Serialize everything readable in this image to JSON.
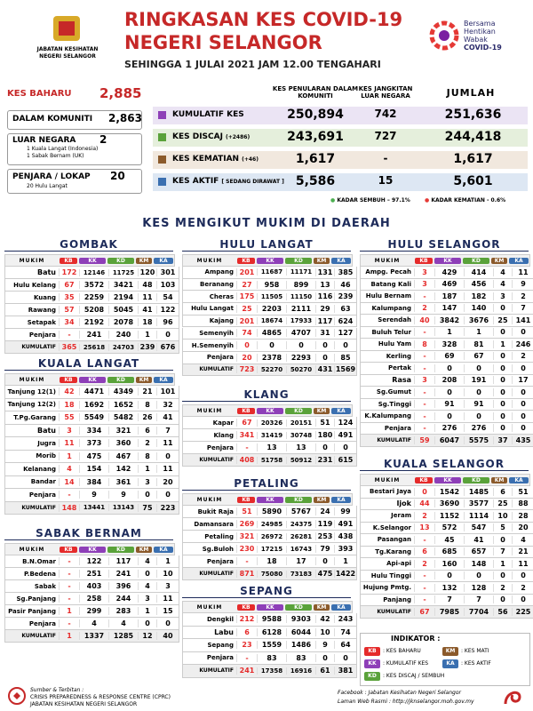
{
  "header": {
    "agency": [
      "JABATAN KESIHATAN",
      "NEGERI SELANGOR"
    ],
    "title": "RINGKASAN KES COVID-19",
    "subtitle": "NEGERI SELANGOR",
    "date": "SEHINGGA 1 JULAI 2021 JAM 12.00 TENGAHARI",
    "campaign": [
      "Bersama",
      "Hentikan",
      "Wabak",
      "COVID-19"
    ]
  },
  "new_cases": {
    "label": "KES BAHARU",
    "value": "2,885",
    "items": [
      {
        "label": "DALAM KOMUNITI",
        "value": "2,863"
      },
      {
        "label": "LUAR NEGARA",
        "value": "2",
        "notes": [
          "1 Kuala Langat (Indonesia)",
          "1 Sabak Bernam (UK)"
        ]
      },
      {
        "label": "PENJARA / LOKAP",
        "value": "20",
        "notes": [
          "20 Hulu Langat"
        ]
      }
    ]
  },
  "summary": {
    "columns": [
      "KES PENULARAN DALAM KOMUNITI",
      "KES JANGKITAN LUAR NEGARA",
      "JUMLAH"
    ],
    "rows": [
      {
        "label": "KUMULATIF KES",
        "values": [
          "250,894",
          "742",
          "251,636"
        ]
      },
      {
        "label": "KES DISCAJ",
        "note": "(+2486)",
        "values": [
          "243,691",
          "727",
          "244,418"
        ]
      },
      {
        "label": "KES KEMATIAN",
        "note": "(+46)",
        "values": [
          "1,617",
          "-",
          "1,617"
        ]
      },
      {
        "label": "KES AKTIF",
        "note": "[ SEDANG DIRAWAT ]",
        "values": [
          "5,586",
          "15",
          "5,601"
        ]
      }
    ],
    "rates": [
      "KADAR SEMBUH – 97.1%",
      "KADAR KEMATIAN - 0.6%"
    ]
  },
  "districts": {
    "title": "KES MENGIKUT MUKIM DI DAERAH",
    "columns": [
      "MUKIM",
      "KB",
      "KK",
      "KD",
      "KM",
      "KA"
    ],
    "list": [
      {
        "name": "GOMBAK",
        "rows": [
          [
            "Batu",
            "172",
            "12146",
            "11725",
            "120",
            "301"
          ],
          [
            "Hulu Kelang",
            "67",
            "3572",
            "3421",
            "48",
            "103"
          ],
          [
            "Kuang",
            "35",
            "2259",
            "2194",
            "11",
            "54"
          ],
          [
            "Rawang",
            "57",
            "5208",
            "5045",
            "41",
            "122"
          ],
          [
            "Setapak",
            "34",
            "2192",
            "2078",
            "18",
            "96"
          ],
          [
            "Penjara",
            "-",
            "241",
            "240",
            "1",
            "0"
          ],
          [
            "KUMULATIF",
            "365",
            "25618",
            "24703",
            "239",
            "676"
          ]
        ]
      },
      {
        "name": "HULU LANGAT",
        "rows": [
          [
            "Ampang",
            "201",
            "11687",
            "11171",
            "131",
            "385"
          ],
          [
            "Beranang",
            "27",
            "958",
            "899",
            "13",
            "46"
          ],
          [
            "Cheras",
            "175",
            "11505",
            "11150",
            "116",
            "239"
          ],
          [
            "Hulu Langat",
            "25",
            "2203",
            "2111",
            "29",
            "63"
          ],
          [
            "Kajang",
            "201",
            "18674",
            "17933",
            "117",
            "624"
          ],
          [
            "Semenyih",
            "74",
            "4865",
            "4707",
            "31",
            "127"
          ],
          [
            "H.Semenyih",
            "0",
            "0",
            "0",
            "0",
            "0"
          ],
          [
            "Penjara",
            "20",
            "2378",
            "2293",
            "0",
            "85"
          ],
          [
            "KUMULATIF",
            "723",
            "52270",
            "50270",
            "431",
            "1569"
          ]
        ]
      },
      {
        "name": "HULU SELANGOR",
        "rows": [
          [
            "Ampg. Pecah",
            "3",
            "429",
            "414",
            "4",
            "11"
          ],
          [
            "Batang Kali",
            "3",
            "469",
            "456",
            "4",
            "9"
          ],
          [
            "Hulu Bernam",
            "-",
            "187",
            "182",
            "3",
            "2"
          ],
          [
            "Kalumpang",
            "2",
            "147",
            "140",
            "0",
            "7"
          ],
          [
            "Serendah",
            "40",
            "3842",
            "3676",
            "25",
            "141"
          ],
          [
            "Buluh Telur",
            "-",
            "1",
            "1",
            "0",
            "0"
          ],
          [
            "Hulu Yam",
            "8",
            "328",
            "81",
            "1",
            "246"
          ],
          [
            "Kerling",
            "-",
            "69",
            "67",
            "0",
            "2"
          ],
          [
            "Pertak",
            "-",
            "0",
            "0",
            "0",
            "0"
          ],
          [
            "Rasa",
            "3",
            "208",
            "191",
            "0",
            "17"
          ],
          [
            "Sg.Gumut",
            "-",
            "0",
            "0",
            "0",
            "0"
          ],
          [
            "Sg.Tinggi",
            "-",
            "91",
            "91",
            "0",
            "0"
          ],
          [
            "K.Kalumpang",
            "-",
            "0",
            "0",
            "0",
            "0"
          ],
          [
            "Penjara",
            "-",
            "276",
            "276",
            "0",
            "0"
          ],
          [
            "KUMULATIF",
            "59",
            "6047",
            "5575",
            "37",
            "435"
          ]
        ]
      },
      {
        "name": "KUALA LANGAT",
        "rows": [
          [
            "Tanjung 12(1)",
            "42",
            "4471",
            "4349",
            "21",
            "101"
          ],
          [
            "Tanjung 12(2)",
            "18",
            "1692",
            "1652",
            "8",
            "32"
          ],
          [
            "T.Pg.Garang",
            "55",
            "5549",
            "5482",
            "26",
            "41"
          ],
          [
            "Batu",
            "3",
            "334",
            "321",
            "6",
            "7"
          ],
          [
            "Jugra",
            "11",
            "373",
            "360",
            "2",
            "11"
          ],
          [
            "Morib",
            "1",
            "475",
            "467",
            "8",
            "0"
          ],
          [
            "Kelanang",
            "4",
            "154",
            "142",
            "1",
            "11"
          ],
          [
            "Bandar",
            "14",
            "384",
            "361",
            "3",
            "20"
          ],
          [
            "Penjara",
            "-",
            "9",
            "9",
            "0",
            "0"
          ],
          [
            "KUMULATIF",
            "148",
            "13441",
            "13143",
            "75",
            "223"
          ]
        ]
      },
      {
        "name": "KLANG",
        "rows": [
          [
            "Kapar",
            "67",
            "20326",
            "20151",
            "51",
            "124"
          ],
          [
            "Klang",
            "341",
            "31419",
            "30748",
            "180",
            "491"
          ],
          [
            "Penjara",
            "-",
            "13",
            "13",
            "0",
            "0"
          ],
          [
            "KUMULATIF",
            "408",
            "51758",
            "50912",
            "231",
            "615"
          ]
        ]
      },
      {
        "name": "KUALA SELANGOR",
        "rows": [
          [
            "Bestari Jaya",
            "0",
            "1542",
            "1485",
            "6",
            "51"
          ],
          [
            "Ijok",
            "44",
            "3690",
            "3577",
            "25",
            "88"
          ],
          [
            "Jeram",
            "2",
            "1152",
            "1114",
            "10",
            "28"
          ],
          [
            "K.Selangor",
            "13",
            "572",
            "547",
            "5",
            "20"
          ],
          [
            "Pasangan",
            "-",
            "45",
            "41",
            "0",
            "4"
          ],
          [
            "Tg.Karang",
            "6",
            "685",
            "657",
            "7",
            "21"
          ],
          [
            "Api-api",
            "2",
            "160",
            "148",
            "1",
            "11"
          ],
          [
            "Hulu Tinggi",
            "-",
            "0",
            "0",
            "0",
            "0"
          ],
          [
            "Hujung Pmtg.",
            "-",
            "132",
            "128",
            "2",
            "2"
          ],
          [
            "Panjang",
            "-",
            "7",
            "7",
            "0",
            "0"
          ],
          [
            "KUMULATIF",
            "67",
            "7985",
            "7704",
            "56",
            "225"
          ]
        ]
      },
      {
        "name": "SABAK BERNAM",
        "rows": [
          [
            "B.N.Omar",
            "-",
            "122",
            "117",
            "4",
            "1"
          ],
          [
            "P.Bedena",
            "-",
            "251",
            "241",
            "0",
            "10"
          ],
          [
            "Sabak",
            "-",
            "403",
            "396",
            "4",
            "3"
          ],
          [
            "Sg.Panjang",
            "-",
            "258",
            "244",
            "3",
            "11"
          ],
          [
            "Pasir Panjang",
            "1",
            "299",
            "283",
            "1",
            "15"
          ],
          [
            "Penjara",
            "-",
            "4",
            "4",
            "0",
            "0"
          ],
          [
            "KUMULATIF",
            "1",
            "1337",
            "1285",
            "12",
            "40"
          ]
        ]
      },
      {
        "name": "PETALING",
        "rows": [
          [
            "Bukit Raja",
            "51",
            "5890",
            "5767",
            "24",
            "99"
          ],
          [
            "Damansara",
            "269",
            "24985",
            "24375",
            "119",
            "491"
          ],
          [
            "Petaling",
            "321",
            "26972",
            "26281",
            "253",
            "438"
          ],
          [
            "Sg.Buloh",
            "230",
            "17215",
            "16743",
            "79",
            "393"
          ],
          [
            "Penjara",
            "-",
            "18",
            "17",
            "0",
            "1"
          ],
          [
            "KUMULATIF",
            "871",
            "75080",
            "73183",
            "475",
            "1422"
          ]
        ]
      },
      {
        "name": "SEPANG",
        "rows": [
          [
            "Dengkil",
            "212",
            "9588",
            "9303",
            "42",
            "243"
          ],
          [
            "Labu",
            "6",
            "6128",
            "6044",
            "10",
            "74"
          ],
          [
            "Sepang",
            "23",
            "1559",
            "1486",
            "9",
            "64"
          ],
          [
            "Penjara",
            "-",
            "83",
            "83",
            "0",
            "0"
          ],
          [
            "KUMULATIF",
            "241",
            "17358",
            "16916",
            "61",
            "381"
          ]
        ]
      }
    ]
  },
  "indicator": {
    "title": "INDIKATOR :",
    "items": [
      {
        "code": "KB",
        "label": ": KES BAHARU"
      },
      {
        "code": "KM",
        "label": ": KES MATI"
      },
      {
        "code": "KK",
        "label": ": KUMULATIF KES"
      },
      {
        "code": "KA",
        "label": ": KES AKTIF"
      },
      {
        "code": "KD",
        "label": ": KES DISCAJ / SEMBUH"
      }
    ]
  },
  "footer": {
    "source": [
      "Sumber & Terbitan :",
      "CRISIS PREPAREDNESS & RESPONSE CENTRE (CPRC)",
      "JABATAN KESIHATAN NEGERI SELANGOR"
    ],
    "links": [
      "Facebook : Jabatan Kesihatan Negeri Selangor",
      "Laman Web Rasmi : http://jknselangor.moh.gov.my"
    ]
  }
}
